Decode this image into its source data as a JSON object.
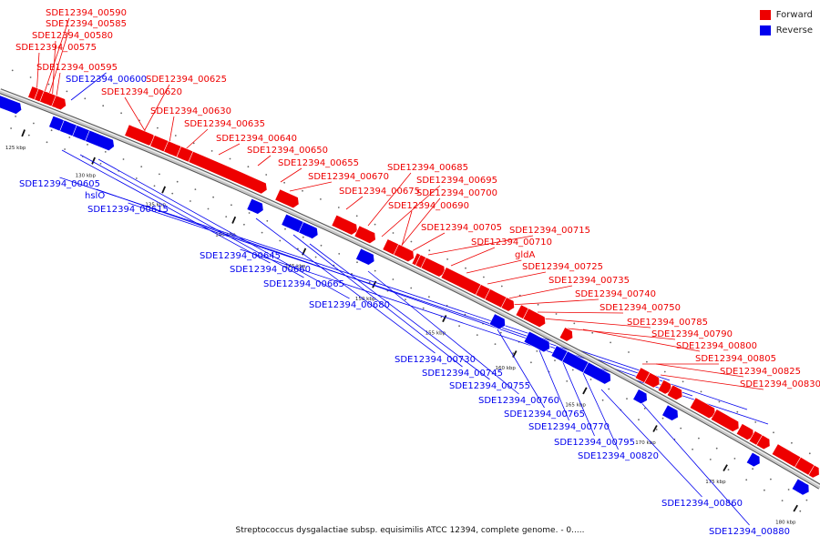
{
  "legend": {
    "forward_label": "Forward",
    "reverse_label": "Reverse",
    "forward_color": "#ee0000",
    "reverse_color": "#0000ee"
  },
  "caption": "Streptococcus dysgalactiae subsp. equisimilis ATCC 12394, complete genome. - 0.....",
  "scale": {
    "ticks": [
      {
        "label": "125 kbp",
        "at": 125
      },
      {
        "label": "130 kbp",
        "at": 130
      },
      {
        "label": "135 kbp",
        "at": 135
      },
      {
        "label": "140 kbp",
        "at": 140
      },
      {
        "label": "145 kbp",
        "at": 145
      },
      {
        "label": "150 kbp",
        "at": 150
      },
      {
        "label": "155 kbp",
        "at": 155
      },
      {
        "label": "160 kbp",
        "at": 160
      },
      {
        "label": "165 kbp",
        "at": 165
      },
      {
        "label": "170 kbp",
        "at": 170
      },
      {
        "label": "175 kbp",
        "at": 175
      },
      {
        "label": "180 kbp",
        "at": 180
      }
    ]
  },
  "genes": [
    {
      "label": "SDE12394_00590",
      "strand": "forward"
    },
    {
      "label": "SDE12394_00585",
      "strand": "forward"
    },
    {
      "label": "SDE12394_00580",
      "strand": "forward"
    },
    {
      "label": "SDE12394_00575",
      "strand": "forward"
    },
    {
      "label": "SDE12394_00595",
      "strand": "forward"
    },
    {
      "label": "SDE12394_00600",
      "strand": "reverse"
    },
    {
      "label": "SDE12394_00625",
      "strand": "forward"
    },
    {
      "label": "SDE12394_00620",
      "strand": "forward"
    },
    {
      "label": "SDE12394_00630",
      "strand": "forward"
    },
    {
      "label": "SDE12394_00635",
      "strand": "forward"
    },
    {
      "label": "SDE12394_00640",
      "strand": "forward"
    },
    {
      "label": "SDE12394_00650",
      "strand": "forward"
    },
    {
      "label": "SDE12394_00655",
      "strand": "forward"
    },
    {
      "label": "SDE12394_00670",
      "strand": "forward"
    },
    {
      "label": "SDE12394_00675",
      "strand": "forward"
    },
    {
      "label": "SDE12394_00685",
      "strand": "forward"
    },
    {
      "label": "SDE12394_00695",
      "strand": "forward"
    },
    {
      "label": "SDE12394_00700",
      "strand": "forward"
    },
    {
      "label": "SDE12394_00690",
      "strand": "forward"
    },
    {
      "label": "SDE12394_00705",
      "strand": "forward"
    },
    {
      "label": "SDE12394_00715",
      "strand": "forward"
    },
    {
      "label": "SDE12394_00710",
      "strand": "forward"
    },
    {
      "label": "gldA",
      "strand": "forward"
    },
    {
      "label": "SDE12394_00725",
      "strand": "forward"
    },
    {
      "label": "SDE12394_00735",
      "strand": "forward"
    },
    {
      "label": "SDE12394_00740",
      "strand": "forward"
    },
    {
      "label": "SDE12394_00750",
      "strand": "forward"
    },
    {
      "label": "SDE12394_00785",
      "strand": "forward"
    },
    {
      "label": "SDE12394_00790",
      "strand": "forward"
    },
    {
      "label": "SDE12394_00800",
      "strand": "forward"
    },
    {
      "label": "SDE12394_00805",
      "strand": "forward"
    },
    {
      "label": "SDE12394_00825",
      "strand": "forward"
    },
    {
      "label": "SDE12394_00830",
      "strand": "forward"
    },
    {
      "label": "SDE12394_00605",
      "strand": "reverse"
    },
    {
      "label": "hslO",
      "strand": "reverse"
    },
    {
      "label": "SDE12394_00615",
      "strand": "reverse"
    },
    {
      "label": "SDE12394_00645",
      "strand": "reverse"
    },
    {
      "label": "SDE12394_00660",
      "strand": "reverse"
    },
    {
      "label": "SDE12394_00665",
      "strand": "reverse"
    },
    {
      "label": "SDE12394_00680",
      "strand": "reverse"
    },
    {
      "label": "SDE12394_00730",
      "strand": "reverse"
    },
    {
      "label": "SDE12394_00745",
      "strand": "reverse"
    },
    {
      "label": "SDE12394_00755",
      "strand": "reverse"
    },
    {
      "label": "SDE12394_00760",
      "strand": "reverse"
    },
    {
      "label": "SDE12394_00765",
      "strand": "reverse"
    },
    {
      "label": "SDE12394_00770",
      "strand": "reverse"
    },
    {
      "label": "SDE12394_00795",
      "strand": "reverse"
    },
    {
      "label": "SDE12394_00820",
      "strand": "reverse"
    },
    {
      "label": "SDE12394_00860",
      "strand": "reverse"
    },
    {
      "label": "SDE12394_00880",
      "strand": "reverse"
    }
  ]
}
